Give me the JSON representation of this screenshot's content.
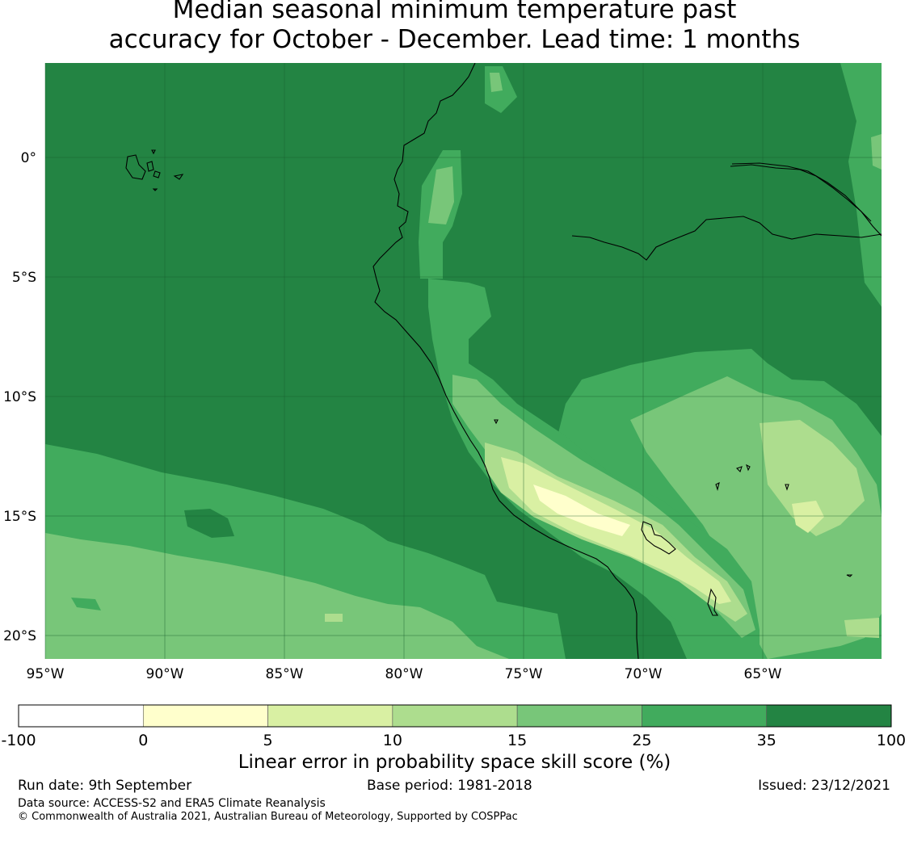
{
  "title": {
    "line1": "Median seasonal minimum temperature past",
    "line2": "accuracy for October - December. Lead time: 1 months"
  },
  "map": {
    "lon_labels": [
      "95°W",
      "90°W",
      "85°W",
      "80°W",
      "75°W",
      "70°W",
      "65°W"
    ],
    "lat_labels": [
      "0°",
      "5°S",
      "10°S",
      "15°S",
      "20°S"
    ],
    "lon_range": [
      -95,
      -60
    ],
    "lat_range": [
      -21,
      4
    ],
    "gridlines": true
  },
  "colorbar": {
    "ticks": [
      "-100",
      "0",
      "5",
      "10",
      "15",
      "25",
      "35",
      "100"
    ],
    "colors": [
      "#ffffff",
      "#ffffcc",
      "#d9f0a3",
      "#addd8e",
      "#78c679",
      "#41ab5d",
      "#238443"
    ],
    "label": "Linear error in probability space skill score (%)"
  },
  "footer": {
    "run_date": "Run date: 9th September",
    "base_period": "Base period: 1981-2018",
    "issued": "Issued: 23/12/2021",
    "data_source": "Data source: ACCESS-S2 and ERA5 Climate Reanalysis",
    "copyright": "© Commonwealth of Australia 2021, Australian Bureau of Meteorology, Supported by COSPPac"
  }
}
